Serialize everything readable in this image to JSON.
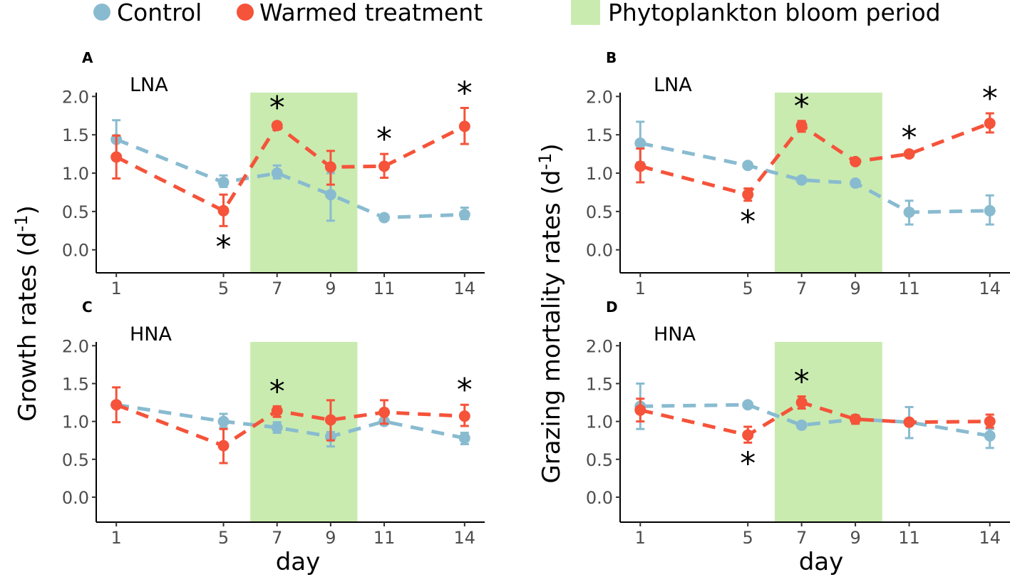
{
  "legend": {
    "items": [
      {
        "label": "Control",
        "color": "#89bbd0",
        "shape": "circle"
      },
      {
        "label": "Warmed treatment",
        "color": "#f5533a",
        "shape": "circle"
      },
      {
        "label": "Phytoplankton bloom period",
        "color": "#c9ebb0",
        "shape": "rect"
      }
    ]
  },
  "ylabel_left": "Growth rates (d",
  "ylabel_right": "Grazing mortality rates (d",
  "ylabel_superscript": "-1",
  "ylabel_close": ")",
  "xlabel": "day",
  "chart_data": [
    {
      "panel": "A",
      "subtitle": "LNA",
      "type": "line",
      "x": [
        1,
        5,
        7,
        9,
        11,
        14
      ],
      "xticks": [
        "1",
        "5",
        "7",
        "9",
        "11",
        "14"
      ],
      "yticks": [
        "0.0",
        "0.5",
        "1.0",
        "1.5",
        "2.0"
      ],
      "ylim": [
        -0.3,
        2.05
      ],
      "xlim": [
        0.25,
        14.75
      ],
      "bloom_period": [
        6,
        10
      ],
      "series": [
        {
          "name": "Control",
          "values": [
            1.44,
            0.88,
            1.0,
            0.72,
            0.42,
            0.46
          ],
          "err_low": [
            1.17,
            0.82,
            0.93,
            0.38,
            0.4,
            0.4
          ],
          "err_high": [
            1.69,
            0.97,
            1.1,
            1.0,
            0.44,
            0.55
          ]
        },
        {
          "name": "Warmed treatment",
          "values": [
            1.21,
            0.51,
            1.62,
            1.08,
            1.09,
            1.61
          ],
          "err_low": [
            0.93,
            0.31,
            1.58,
            0.85,
            0.94,
            1.38
          ],
          "err_high": [
            1.49,
            0.72,
            1.66,
            1.29,
            1.25,
            1.85
          ]
        }
      ],
      "significance": [
        {
          "day": 5,
          "pos": "below",
          "mark": "*"
        },
        {
          "day": 7,
          "pos": "above",
          "mark": "*"
        },
        {
          "day": 11,
          "pos": "above",
          "mark": "*"
        },
        {
          "day": 14,
          "pos": "above",
          "mark": "*"
        }
      ]
    },
    {
      "panel": "B",
      "subtitle": "LNA",
      "type": "line",
      "x": [
        1,
        5,
        7,
        9,
        11,
        14
      ],
      "xticks": [
        "1",
        "5",
        "7",
        "9",
        "11",
        "14"
      ],
      "yticks": [
        "0.0",
        "0.5",
        "1.0",
        "1.5",
        "2.0"
      ],
      "ylim": [
        -0.3,
        2.05
      ],
      "xlim": [
        0.25,
        14.75
      ],
      "bloom_period": [
        6,
        10
      ],
      "series": [
        {
          "name": "Control",
          "values": [
            1.39,
            1.1,
            0.91,
            0.87,
            0.49,
            0.51
          ],
          "err_low": [
            1.14,
            1.07,
            0.89,
            0.85,
            0.33,
            0.33
          ],
          "err_high": [
            1.67,
            1.13,
            0.93,
            0.89,
            0.64,
            0.71
          ]
        },
        {
          "name": "Warmed treatment",
          "values": [
            1.09,
            0.72,
            1.62,
            1.15,
            1.25,
            1.65
          ],
          "err_low": [
            0.88,
            0.64,
            1.54,
            1.12,
            1.23,
            1.53
          ],
          "err_high": [
            1.32,
            0.8,
            1.68,
            1.18,
            1.27,
            1.78
          ]
        }
      ],
      "significance": [
        {
          "day": 5,
          "pos": "below",
          "mark": "*"
        },
        {
          "day": 7,
          "pos": "above",
          "mark": "*"
        },
        {
          "day": 11,
          "pos": "above",
          "mark": "*"
        },
        {
          "day": 14,
          "pos": "above",
          "mark": "*"
        }
      ]
    },
    {
      "panel": "C",
      "subtitle": "HNA",
      "type": "line",
      "x": [
        1,
        5,
        7,
        9,
        11,
        14
      ],
      "xticks": [
        "1",
        "5",
        "7",
        "9",
        "11",
        "14"
      ],
      "yticks": [
        "0.0",
        "0.5",
        "1.0",
        "1.5",
        "2.0"
      ],
      "ylim": [
        -0.33,
        2.05
      ],
      "xlim": [
        0.25,
        14.75
      ],
      "bloom_period": [
        6,
        10
      ],
      "series": [
        {
          "name": "Control",
          "values": [
            1.22,
            1.0,
            0.92,
            0.8,
            1.0,
            0.78
          ],
          "err_low": [
            1.18,
            0.92,
            0.85,
            0.67,
            0.97,
            0.7
          ],
          "err_high": [
            1.26,
            1.1,
            0.99,
            0.86,
            1.03,
            0.85
          ]
        },
        {
          "name": "Warmed treatment",
          "values": [
            1.22,
            0.68,
            1.14,
            1.02,
            1.12,
            1.07
          ],
          "err_low": [
            0.99,
            0.45,
            1.06,
            0.75,
            0.97,
            0.94
          ],
          "err_high": [
            1.45,
            0.9,
            1.2,
            1.28,
            1.28,
            1.22
          ]
        }
      ],
      "significance": [
        {
          "day": 7,
          "pos": "above",
          "mark": "*"
        },
        {
          "day": 14,
          "pos": "above",
          "mark": "*"
        }
      ]
    },
    {
      "panel": "D",
      "subtitle": "HNA",
      "type": "line",
      "x": [
        1,
        5,
        7,
        9,
        11,
        14
      ],
      "xticks": [
        "1",
        "5",
        "7",
        "9",
        "11",
        "14"
      ],
      "yticks": [
        "0.0",
        "0.5",
        "1.0",
        "1.5",
        "2.0"
      ],
      "ylim": [
        -0.33,
        2.05
      ],
      "xlim": [
        0.25,
        14.75
      ],
      "bloom_period": [
        6,
        10
      ],
      "series": [
        {
          "name": "Control",
          "values": [
            1.2,
            1.22,
            0.95,
            1.03,
            0.99,
            0.81
          ],
          "err_low": [
            0.9,
            1.19,
            0.93,
            0.98,
            0.78,
            0.65
          ],
          "err_high": [
            1.5,
            1.25,
            0.97,
            1.08,
            1.19,
            0.9
          ]
        },
        {
          "name": "Warmed treatment",
          "values": [
            1.15,
            0.82,
            1.25,
            1.03,
            0.99,
            1.0
          ],
          "err_low": [
            1.0,
            0.72,
            1.17,
            0.97,
            0.96,
            0.92
          ],
          "err_high": [
            1.3,
            0.93,
            1.33,
            1.08,
            1.02,
            1.09
          ]
        }
      ],
      "significance": [
        {
          "day": 5,
          "pos": "below",
          "mark": "*"
        },
        {
          "day": 7,
          "pos": "above",
          "mark": "*"
        }
      ]
    }
  ]
}
